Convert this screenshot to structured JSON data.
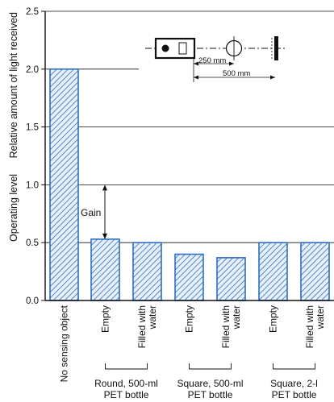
{
  "chart_data": {
    "type": "bar",
    "title": "",
    "ylabel": "Relative amount of light received",
    "ylim": [
      0,
      2.5
    ],
    "y_ticks": [
      "0.0",
      "0.5",
      "1.0",
      "1.5",
      "2.0",
      "2.5"
    ],
    "grid": true,
    "categories": [
      "No sensing object",
      "Empty",
      "Filled with water",
      "Empty",
      "Filled with water",
      "Empty",
      "Filled with water"
    ],
    "values": [
      2.0,
      0.53,
      0.5,
      0.4,
      0.37,
      0.5,
      0.5
    ],
    "groups": [
      {
        "label_line1": "Round, 500-ml",
        "label_line2": "PET bottle"
      },
      {
        "label_line1": "Square, 500-ml",
        "label_line2": "PET bottle"
      },
      {
        "label_line1": "Square, 2-l",
        "label_line2": "PET bottle"
      }
    ],
    "operating_level": {
      "label": "Operating level",
      "value": 1.0
    },
    "gain_annotation": {
      "label": "Gain",
      "from": 0.53,
      "to": 1.0
    },
    "diagram": {
      "dist_short": "250 mm",
      "dist_long": "500 mm"
    },
    "colors": {
      "bar_hatch": "#2e6ec4",
      "bar_fill": "#e8f0fb",
      "axis": "#111111"
    }
  }
}
